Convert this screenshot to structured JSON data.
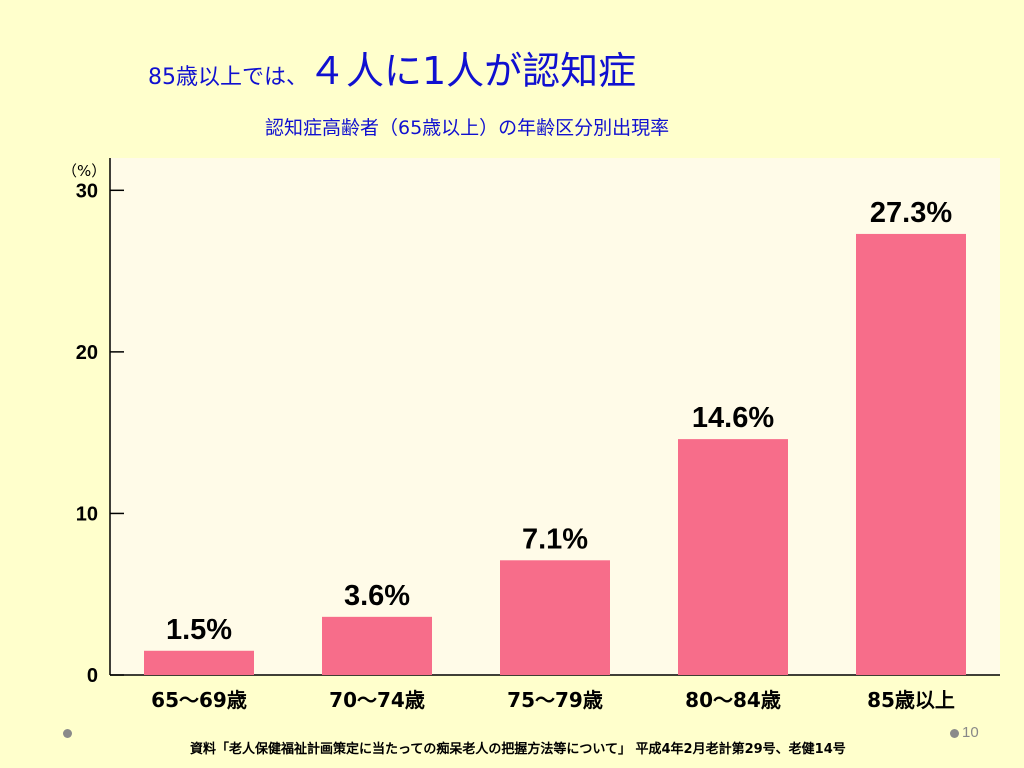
{
  "slide": {
    "title_prefix": "85歳以上では、",
    "title_main": "４人に1人が認知症",
    "subtitle": "認知症高齢者（65歳以上）の年齢区分別出現率",
    "source": "資料「老人保健福祉計画策定に当たっての痴呆老人の把握方法等について」 平成4年2月老計第29号、老健14号",
    "page_number": "10"
  },
  "chart_data": {
    "type": "bar",
    "title": "認知症高齢者（65歳以上）の年齢区分別出現率",
    "unit": "（%）",
    "categories": [
      "65～69歳",
      "70～74歳",
      "75～79歳",
      "80～84歳",
      "85歳以上"
    ],
    "values": [
      1.5,
      3.6,
      7.1,
      14.6,
      27.3
    ],
    "data_labels": [
      "1.5%",
      "3.6%",
      "7.1%",
      "14.6%",
      "27.3%"
    ],
    "ylim": [
      0,
      32
    ],
    "yticks": [
      0,
      10,
      20,
      30
    ],
    "grid": false,
    "bar_color": "#f76d8a",
    "plot_background": "#fffbe8"
  }
}
